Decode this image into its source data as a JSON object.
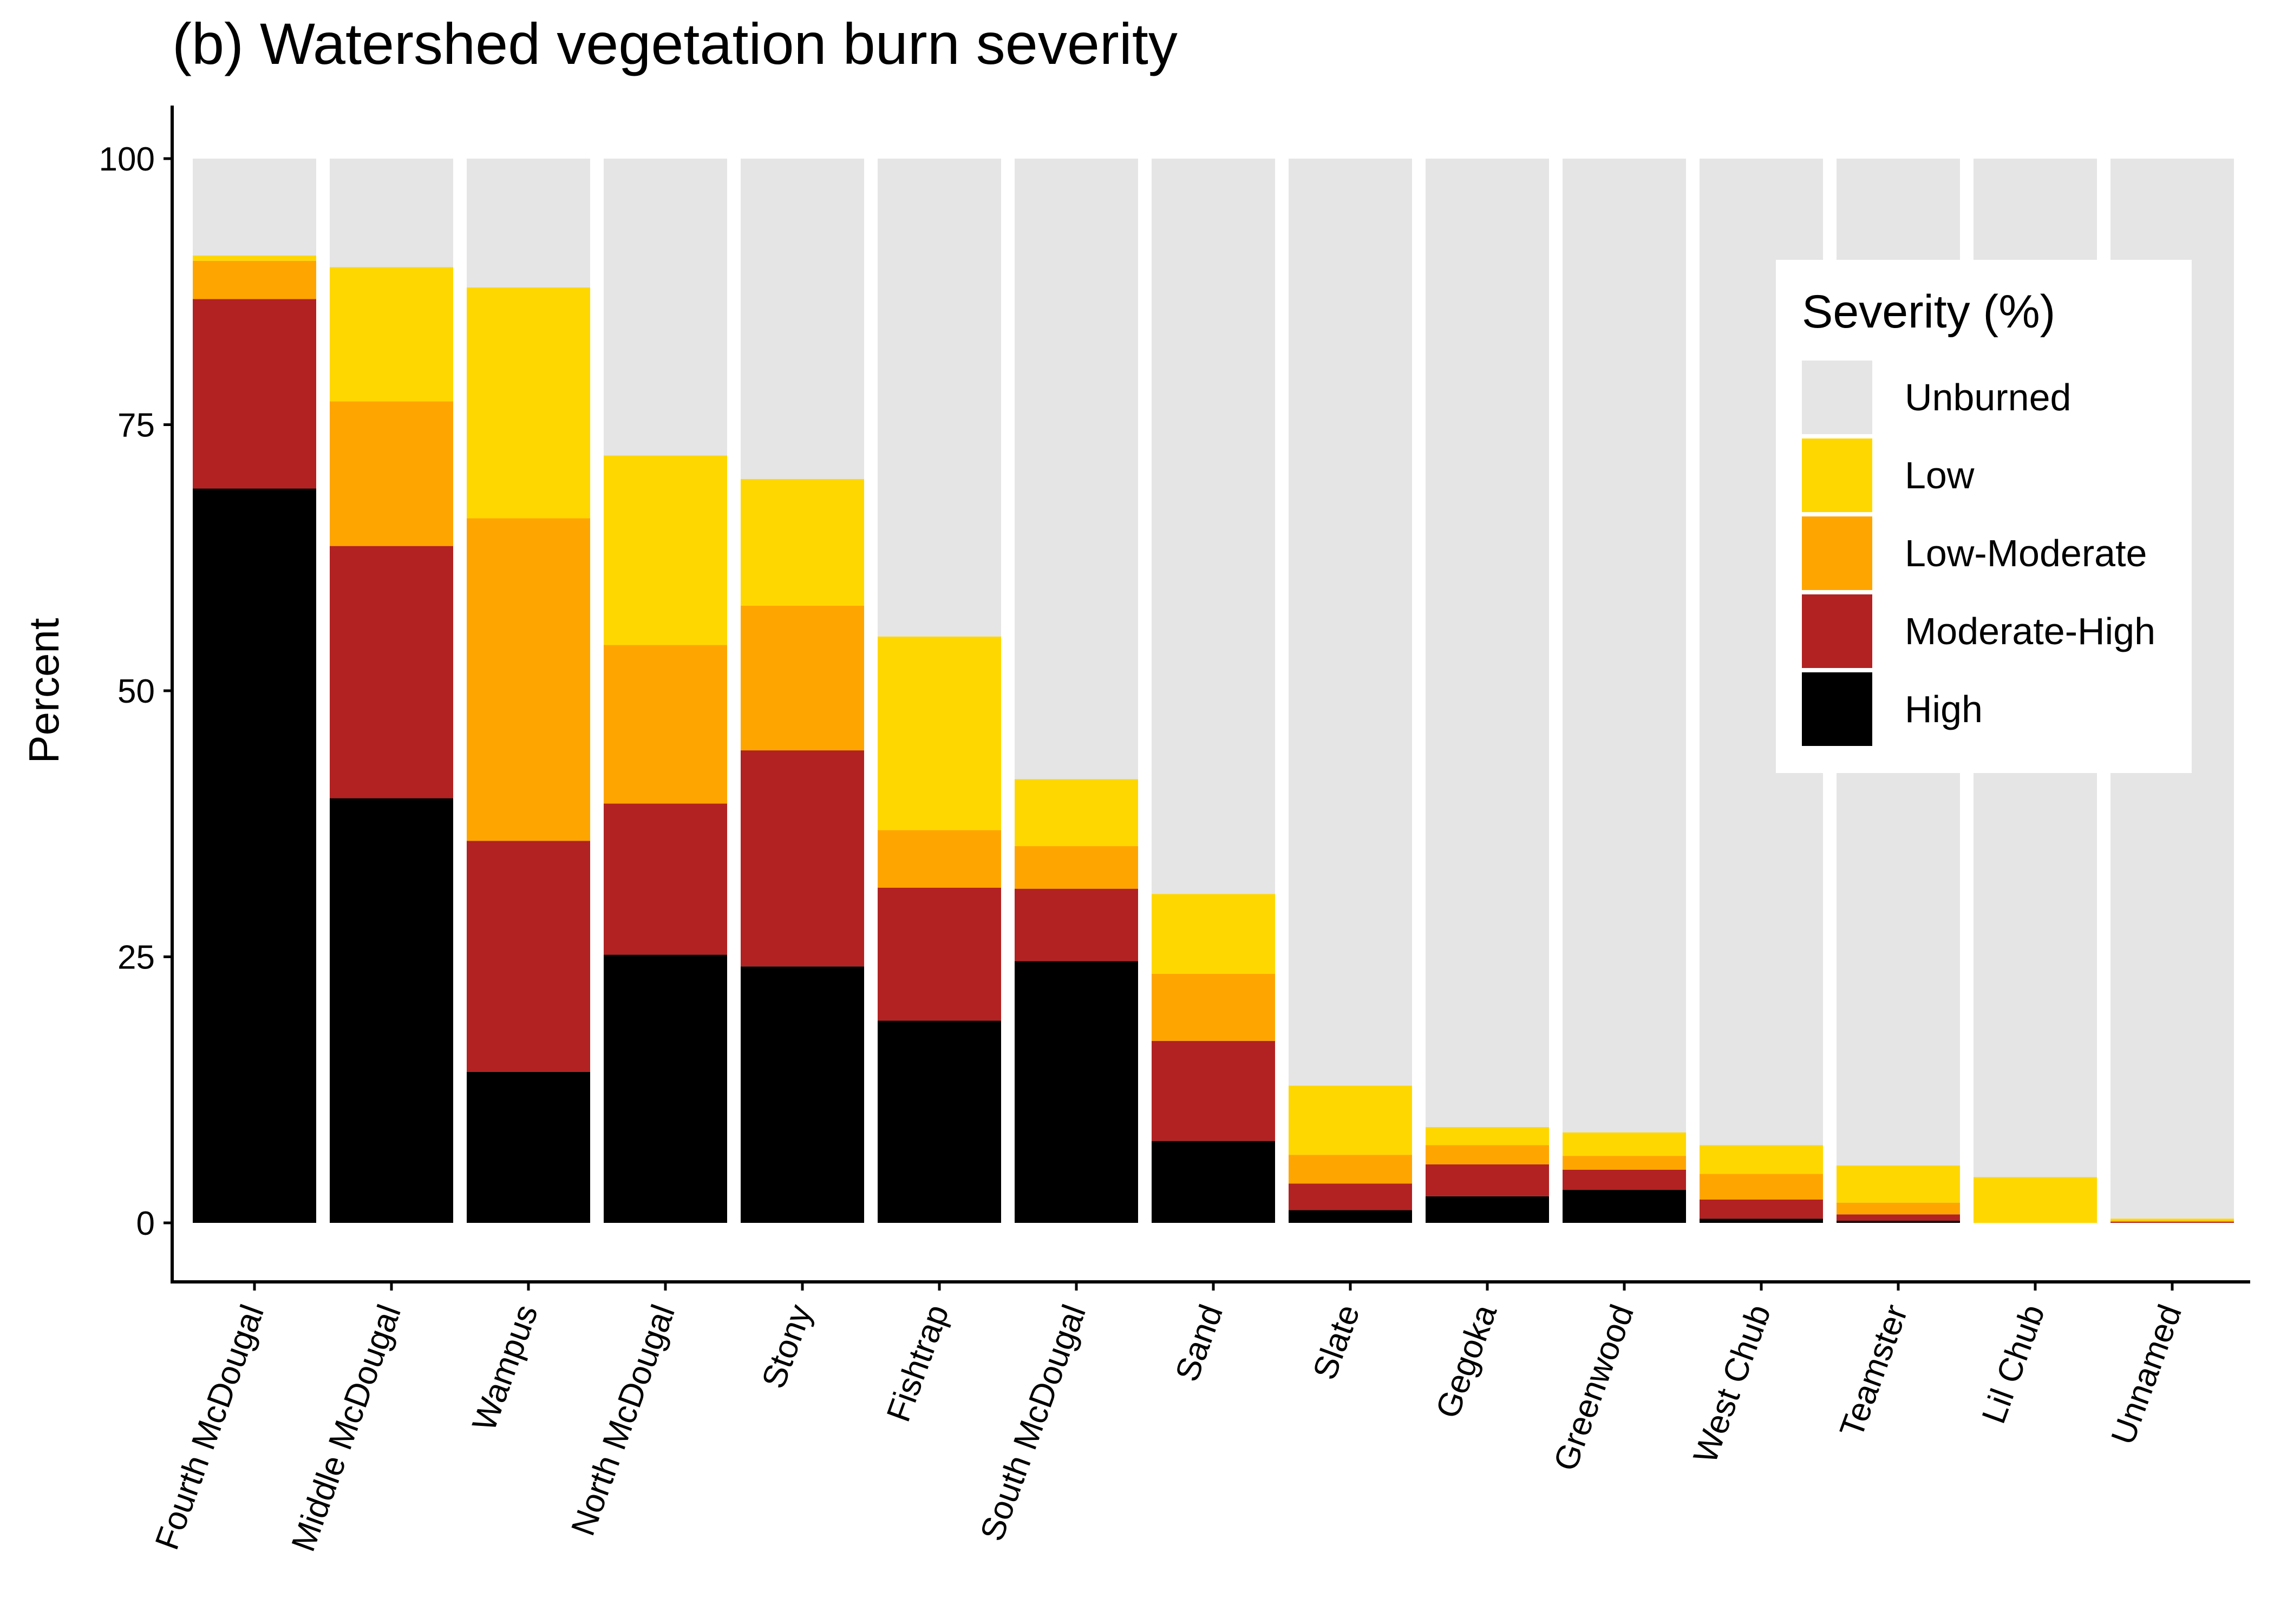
{
  "chart_data": {
    "type": "bar",
    "stacked": true,
    "title": "(b) Watershed vegetation burn severity",
    "xlabel": "",
    "ylabel": "Percent",
    "ylim": [
      -10,
      105
    ],
    "yticks": [
      0,
      25,
      50,
      75,
      100
    ],
    "grid": false,
    "legend": {
      "title": "Severity (%)",
      "position": "top-right"
    },
    "categories": [
      "Fourth McDougal",
      "Middle McDougal",
      "Wampus",
      "North McDougal",
      "Stony",
      "Fishtrap",
      "South McDougal",
      "Sand",
      "Slate",
      "Gegoka",
      "Greenwood",
      "West Chub",
      "Teamster",
      "Lil Chub",
      "Unnamed"
    ],
    "series": [
      {
        "name": "High",
        "color": "#000000",
        "values": [
          69.0,
          39.9,
          14.2,
          25.2,
          24.1,
          19.0,
          24.6,
          7.7,
          1.2,
          2.5,
          3.1,
          0.4,
          0.2,
          0.0,
          0.0
        ]
      },
      {
        "name": "Moderate-High",
        "color": "#b22222",
        "values": [
          17.8,
          23.7,
          21.7,
          14.2,
          20.3,
          12.5,
          6.8,
          9.4,
          2.5,
          3.0,
          1.9,
          1.8,
          0.6,
          0.0,
          0.1
        ]
      },
      {
        "name": "Low-Moderate",
        "color": "#ffa500",
        "values": [
          3.6,
          13.6,
          30.3,
          14.9,
          13.6,
          5.4,
          4.0,
          6.3,
          2.7,
          1.8,
          1.3,
          2.4,
          1.1,
          0.0,
          0.1
        ]
      },
      {
        "name": "Low",
        "color": "#ffd700",
        "values": [
          0.5,
          12.6,
          21.7,
          17.8,
          11.9,
          18.2,
          6.3,
          7.5,
          6.5,
          1.7,
          2.2,
          2.7,
          3.5,
          4.3,
          0.2
        ]
      },
      {
        "name": "Unburned",
        "color": "#e5e5e5",
        "values": [
          9.1,
          10.2,
          12.1,
          27.9,
          30.1,
          44.9,
          58.3,
          69.1,
          87.1,
          91.0,
          91.5,
          92.7,
          94.6,
          95.7,
          99.6
        ]
      }
    ],
    "legend_order": [
      "Unburned",
      "Low",
      "Low-Moderate",
      "Moderate-High",
      "High"
    ]
  }
}
